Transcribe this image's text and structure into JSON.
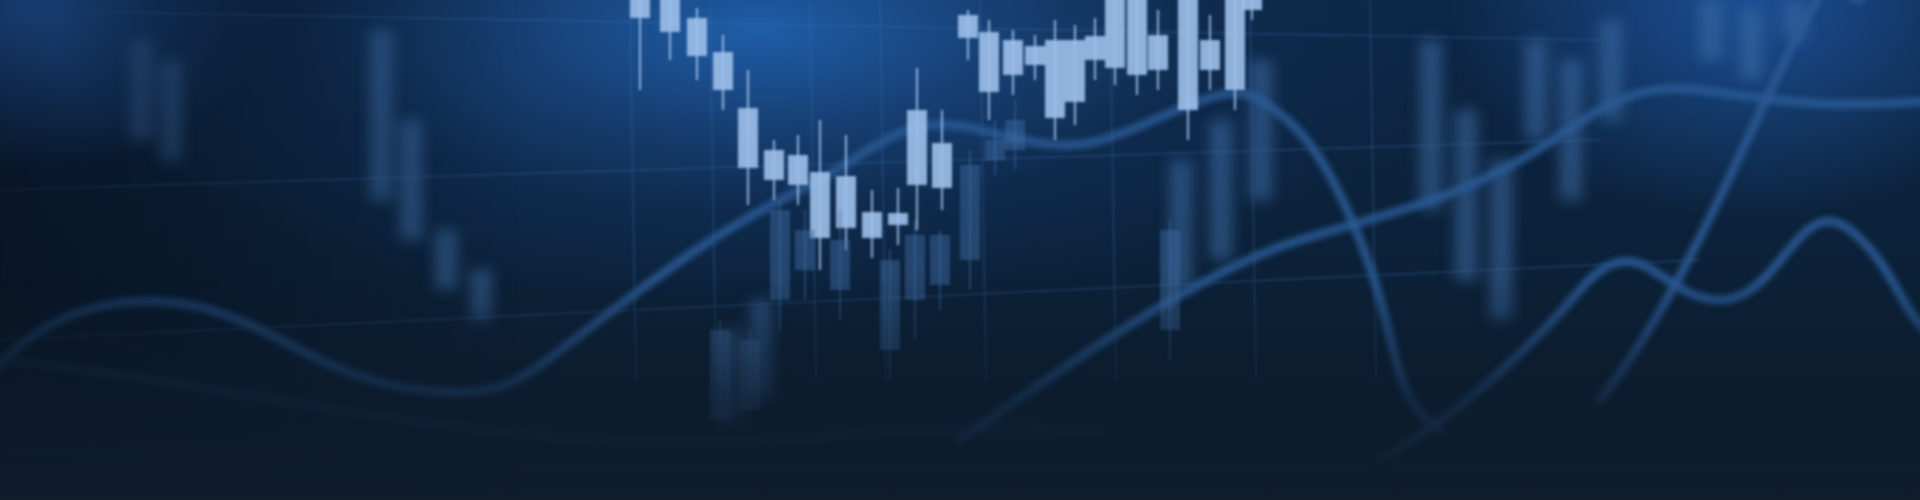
{
  "banner": {
    "image_kind": "decorative-financial-candlestick-background",
    "colors": {
      "deep_navy": "#0e1c2c",
      "mid_blue": "#163f72",
      "bright_blue": "#2b6fd0",
      "candle_light": "#9fc0ea",
      "candle_dim": "#3f6fa8",
      "line_color": "#2a5a95",
      "grid_color": "#3a6fb0"
    }
  }
}
